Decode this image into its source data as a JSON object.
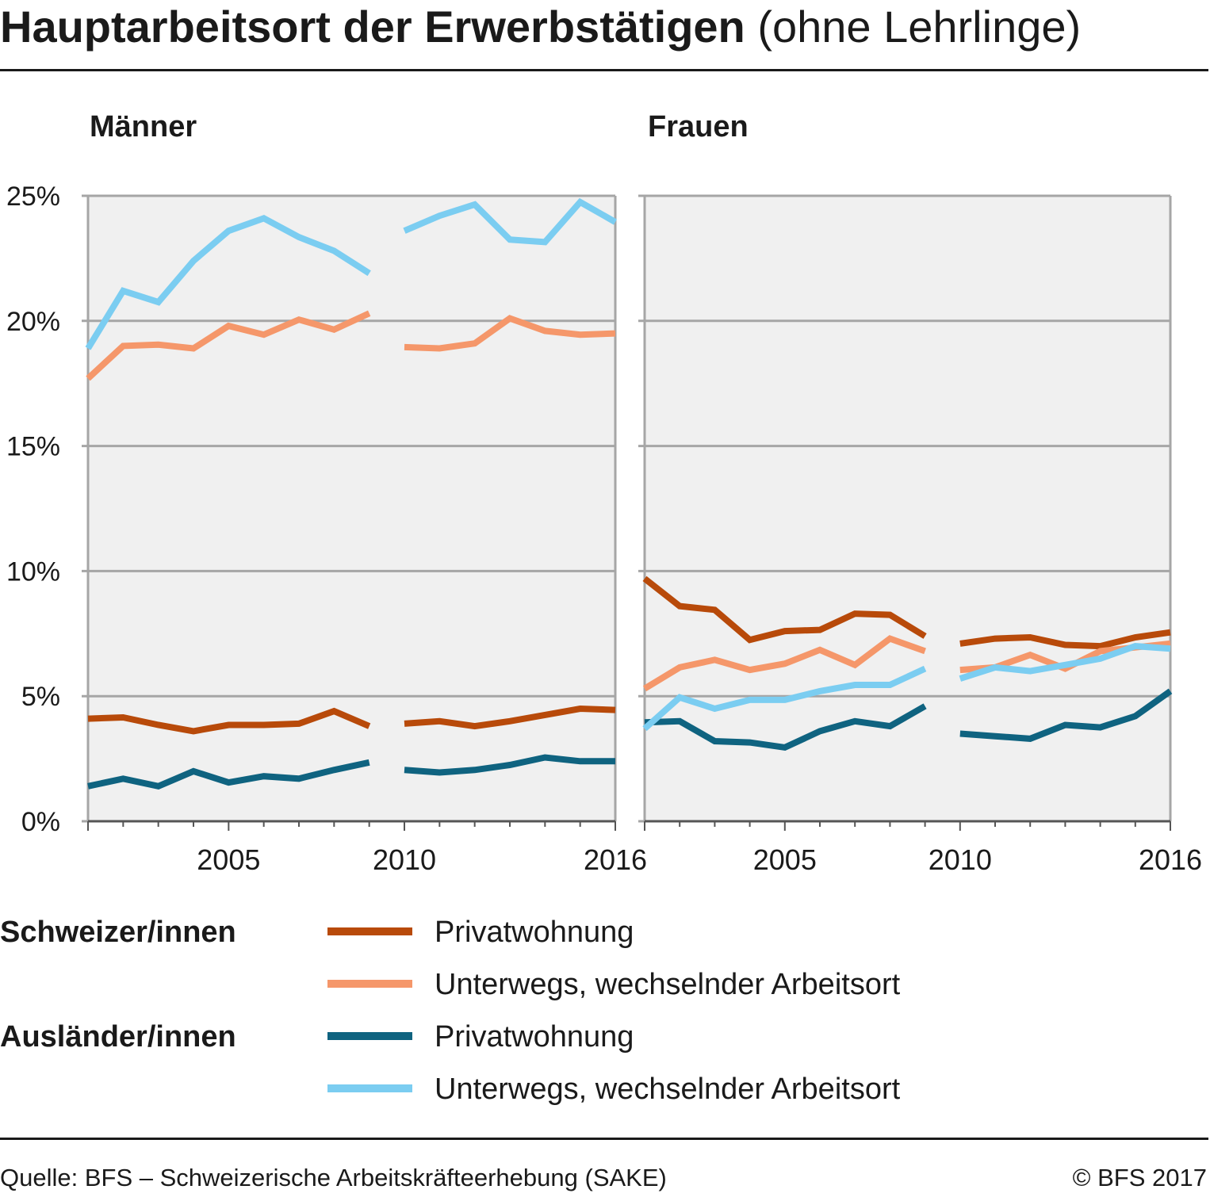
{
  "title": {
    "bold": "Hauptarbeitsort der Erwerbstätigen",
    "light": "(ohne Lehrlinge)"
  },
  "source": "Quelle: BFS – Schweizerische Arbeitskräfteerhebung (SAKE)",
  "copyright": "© BFS 2017",
  "colors": {
    "ch_home": "#b84a0a",
    "ch_mobile": "#f5976a",
    "foreign_home": "#0f6380",
    "foreign_mobile": "#7bcdf1",
    "panel_bg": "#f0f0f0",
    "grid": "#a6a6a6"
  },
  "legend": {
    "groups": [
      {
        "label": "Schweizer/innen",
        "items": [
          {
            "label": "Privatwohnung",
            "color": "#b84a0a"
          },
          {
            "label": "Unterwegs, wechselnder Arbeitsort",
            "color": "#f5976a"
          }
        ]
      },
      {
        "label": "Ausländer/innen",
        "items": [
          {
            "label": "Privatwohnung",
            "color": "#0f6380"
          },
          {
            "label": "Unterwegs, wechselnder Arbeitsort",
            "color": "#7bcdf1"
          }
        ]
      }
    ]
  },
  "chart_data": [
    {
      "type": "line",
      "title": "Männer",
      "x": [
        2001,
        2002,
        2003,
        2004,
        2005,
        2006,
        2007,
        2008,
        2009,
        2010,
        2011,
        2012,
        2013,
        2014,
        2015,
        2016
      ],
      "xticks": [
        "2005",
        "2010",
        "2016"
      ],
      "xtick_values": [
        2005,
        2010,
        2016
      ],
      "ylim": [
        0,
        25
      ],
      "yticks": [
        "0%",
        "5%",
        "10%",
        "15%",
        "20%",
        "25%"
      ],
      "ytick_values": [
        0,
        5,
        10,
        15,
        20,
        25
      ],
      "break_between": [
        2009,
        2010
      ],
      "series": [
        {
          "name": "Schweizer/innen – Privatwohnung",
          "color": "#b84a0a",
          "values": [
            4.1,
            4.15,
            3.85,
            3.6,
            3.85,
            3.85,
            3.9,
            4.4,
            3.8,
            3.9,
            4.0,
            3.8,
            4.0,
            4.25,
            4.5,
            4.45
          ]
        },
        {
          "name": "Schweizer/innen – Unterwegs, wechselnder Arbeitsort",
          "color": "#f5976a",
          "values": [
            17.7,
            19.0,
            19.05,
            18.9,
            19.8,
            19.45,
            20.05,
            19.65,
            20.3,
            18.95,
            18.9,
            19.1,
            20.1,
            19.6,
            19.45,
            19.5
          ]
        },
        {
          "name": "Ausländer/innen – Privatwohnung",
          "color": "#0f6380",
          "values": [
            1.4,
            1.7,
            1.4,
            2.0,
            1.55,
            1.8,
            1.7,
            2.05,
            2.35,
            2.05,
            1.95,
            2.05,
            2.25,
            2.55,
            2.4,
            2.4
          ]
        },
        {
          "name": "Ausländer/innen – Unterwegs, wechselnder Arbeitsort",
          "color": "#7bcdf1",
          "values": [
            18.9,
            21.2,
            20.75,
            22.4,
            23.6,
            24.1,
            23.35,
            22.8,
            21.9,
            23.6,
            24.2,
            24.65,
            23.25,
            23.15,
            24.75,
            23.95
          ]
        }
      ]
    },
    {
      "type": "line",
      "title": "Frauen",
      "x": [
        2001,
        2002,
        2003,
        2004,
        2005,
        2006,
        2007,
        2008,
        2009,
        2010,
        2011,
        2012,
        2013,
        2014,
        2015,
        2016
      ],
      "xticks": [
        "2005",
        "2010",
        "2016"
      ],
      "xtick_values": [
        2005,
        2010,
        2016
      ],
      "ylim": [
        0,
        25
      ],
      "yticks": [
        "0%",
        "5%",
        "10%",
        "15%",
        "20%",
        "25%"
      ],
      "ytick_values": [
        0,
        5,
        10,
        15,
        20,
        25
      ],
      "break_between": [
        2009,
        2010
      ],
      "series": [
        {
          "name": "Schweizer/innen – Privatwohnung",
          "color": "#b84a0a",
          "values": [
            9.7,
            8.6,
            8.45,
            7.25,
            7.6,
            7.65,
            8.3,
            8.25,
            7.4,
            7.1,
            7.3,
            7.35,
            7.05,
            7.0,
            7.35,
            7.55
          ]
        },
        {
          "name": "Schweizer/innen – Unterwegs, wechselnder Arbeitsort",
          "color": "#f5976a",
          "values": [
            5.3,
            6.15,
            6.45,
            6.05,
            6.3,
            6.85,
            6.25,
            7.3,
            6.8,
            6.05,
            6.15,
            6.65,
            6.1,
            6.8,
            6.95,
            7.1
          ]
        },
        {
          "name": "Ausländer/innen – Privatwohnung",
          "color": "#0f6380",
          "values": [
            3.95,
            4.0,
            3.2,
            3.15,
            2.95,
            3.6,
            4.0,
            3.8,
            4.6,
            3.5,
            3.4,
            3.3,
            3.85,
            3.75,
            4.2,
            5.2
          ]
        },
        {
          "name": "Ausländer/innen – Unterwegs, wechselnder Arbeitsort",
          "color": "#7bcdf1",
          "values": [
            3.7,
            4.95,
            4.5,
            4.85,
            4.85,
            5.2,
            5.45,
            5.45,
            6.1,
            5.7,
            6.15,
            6.0,
            6.25,
            6.5,
            7.0,
            6.9
          ]
        }
      ]
    }
  ]
}
